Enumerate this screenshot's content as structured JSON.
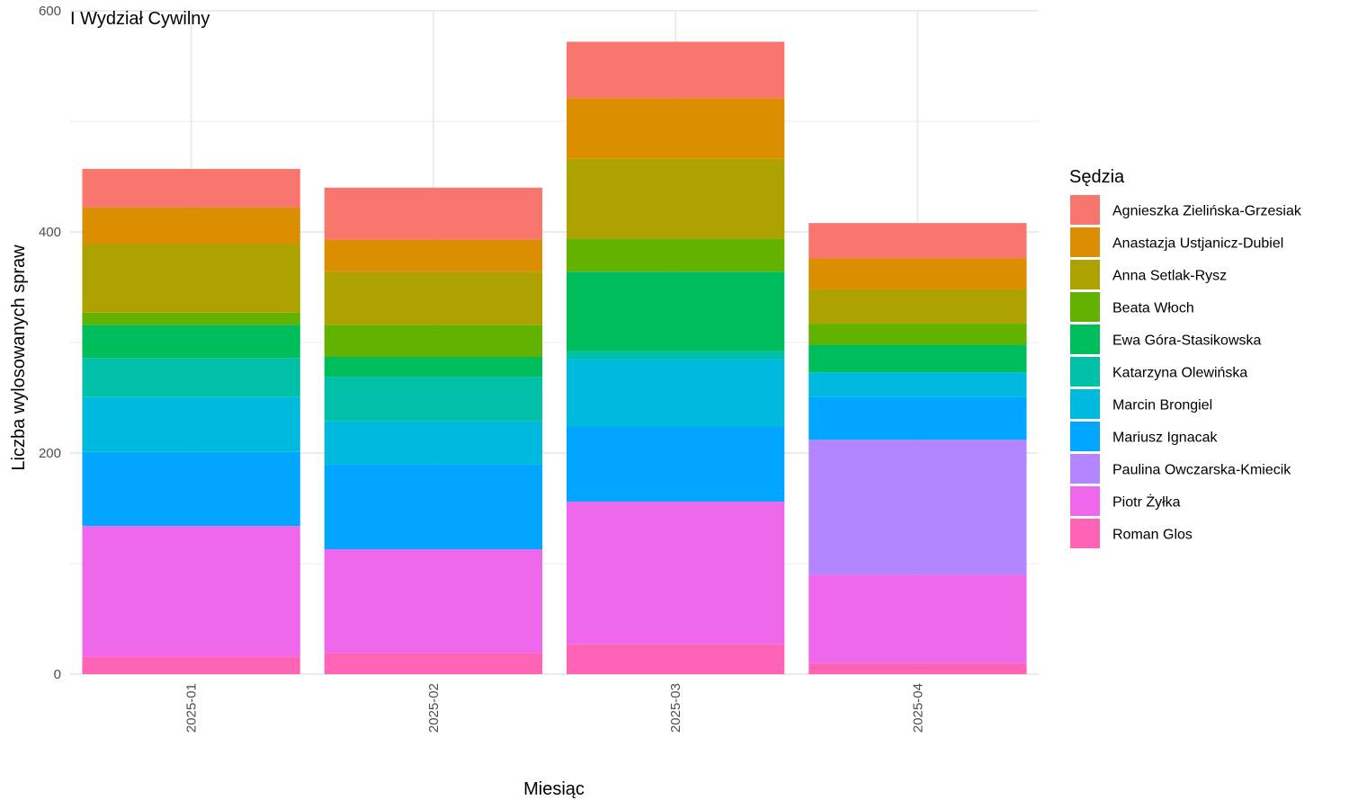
{
  "chart_data": {
    "type": "bar",
    "stacked": true,
    "title": "I Wydział Cywilny",
    "xlabel": "Miesiąc",
    "ylabel": "Liczba wylosowanych spraw",
    "ylim": [
      0,
      600
    ],
    "yticks": [
      0,
      200,
      400,
      600
    ],
    "grid": true,
    "legend_title": "Sędzia",
    "legend_position": "right",
    "categories": [
      "2025-01",
      "2025-02",
      "2025-03",
      "2025-04"
    ],
    "series": [
      {
        "name": "Agnieszka Zielińska-Grzesiak",
        "color": "#F8766D",
        "values": [
          35,
          47,
          51,
          32
        ]
      },
      {
        "name": "Anastazja Ustjanicz-Dubiel",
        "color": "#DB8E00",
        "values": [
          33,
          29,
          55,
          28
        ]
      },
      {
        "name": "Anna Setlak-Rysz",
        "color": "#AEA200",
        "values": [
          62,
          48,
          72,
          31
        ]
      },
      {
        "name": "Beata Włoch",
        "color": "#64B200",
        "values": [
          11,
          29,
          30,
          19
        ]
      },
      {
        "name": "Ewa Góra-Stasikowska",
        "color": "#00BD5C",
        "values": [
          30,
          18,
          72,
          25
        ]
      },
      {
        "name": "Katarzyna Olewińska",
        "color": "#00C1A7",
        "values": [
          35,
          40,
          7,
          0
        ]
      },
      {
        "name": "Marcin Brongiel",
        "color": "#00BADE",
        "values": [
          50,
          39,
          61,
          22
        ]
      },
      {
        "name": "Mariusz Ignacak",
        "color": "#00A6FF",
        "values": [
          67,
          77,
          68,
          39
        ]
      },
      {
        "name": "Paulina Owczarska-Kmiecik",
        "color": "#B385FF",
        "values": [
          0,
          0,
          0,
          122
        ]
      },
      {
        "name": "Piotr Żyłka",
        "color": "#EF67EB",
        "values": [
          118,
          94,
          129,
          80
        ]
      },
      {
        "name": "Roman Glos",
        "color": "#FF63B6",
        "values": [
          16,
          19,
          27,
          10
        ]
      }
    ]
  }
}
